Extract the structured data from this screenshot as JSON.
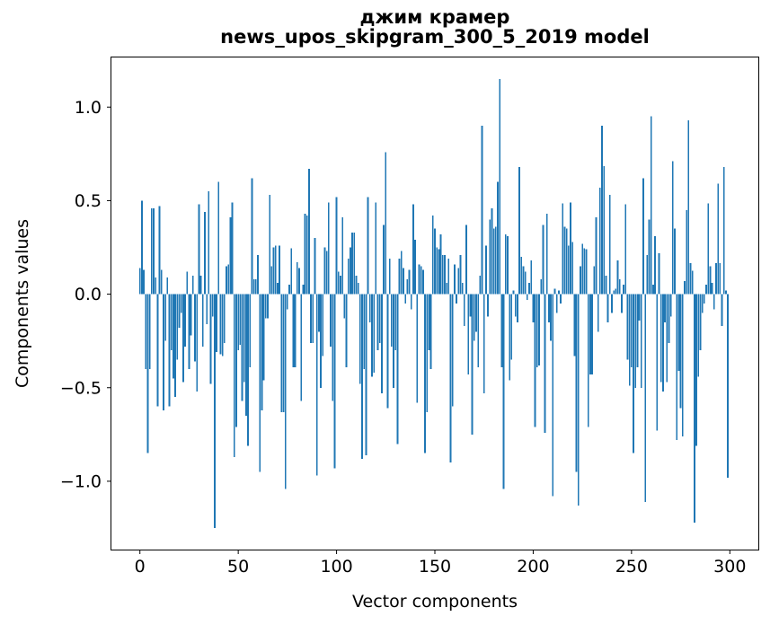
{
  "chart_data": {
    "type": "bar",
    "title": "джим крамер",
    "subtitle": "news_upos_skipgram_300_5_2019 model",
    "xlabel": "Vector components",
    "ylabel": "Components values",
    "bar_color": "#1f77b4",
    "axis_color": "#000000",
    "background_color": "#ffffff",
    "n_components": 300,
    "xlim": [
      -14.95,
      314.95
    ],
    "ylim": [
      -1.37,
      1.27
    ],
    "grid": false,
    "legend": "none",
    "x_ticks": [
      0,
      50,
      100,
      150,
      200,
      250,
      300
    ],
    "x_tick_labels": [
      "0",
      "50",
      "100",
      "150",
      "200",
      "250",
      "300"
    ],
    "y_ticks": [
      1.0,
      0.5,
      0.0,
      -0.5,
      -1.0
    ],
    "y_tick_labels": [
      "1.0",
      "0.5",
      "0.0",
      "−0.5",
      "−1.0"
    ],
    "values": [
      0.14,
      0.5,
      0.13,
      -0.4,
      -0.85,
      -0.4,
      0.46,
      0.46,
      0.09,
      -0.6,
      0.47,
      0.13,
      -0.62,
      -0.25,
      0.09,
      -0.6,
      -0.3,
      -0.45,
      -0.55,
      -0.35,
      -0.18,
      -0.1,
      -0.47,
      -0.28,
      0.12,
      -0.4,
      -0.22,
      0.1,
      -0.36,
      -0.52,
      0.48,
      0.1,
      -0.28,
      0.44,
      -0.16,
      0.55,
      -0.48,
      -0.12,
      -1.25,
      -0.31,
      0.6,
      -0.32,
      -0.33,
      -0.26,
      0.15,
      0.16,
      0.41,
      0.49,
      -0.87,
      -0.71,
      -0.3,
      -0.27,
      -0.57,
      -0.47,
      -0.65,
      -0.81,
      -0.39,
      0.62,
      0.08,
      0.08,
      0.21,
      -0.95,
      -0.62,
      -0.46,
      -0.13,
      -0.13,
      0.53,
      0.15,
      0.25,
      0.26,
      0.06,
      0.26,
      -0.63,
      -0.63,
      -1.04,
      -0.08,
      0.05,
      0.245,
      -0.39,
      -0.39,
      0.17,
      0.14,
      -0.57,
      0.05,
      0.43,
      0.42,
      0.67,
      -0.26,
      -0.26,
      0.3,
      -0.97,
      -0.2,
      -0.5,
      -0.33,
      0.25,
      0.23,
      0.49,
      -0.28,
      -0.57,
      -0.93,
      0.52,
      0.12,
      0.1,
      0.41,
      -0.13,
      -0.39,
      0.19,
      0.25,
      0.33,
      0.33,
      0.1,
      0.06,
      -0.48,
      -0.88,
      -0.4,
      -0.86,
      0.52,
      -0.15,
      -0.44,
      -0.42,
      0.49,
      -0.3,
      -0.26,
      -0.53,
      0.37,
      0.76,
      -0.61,
      0.19,
      -0.28,
      -0.5,
      -0.3,
      -0.8,
      0.19,
      0.23,
      0.14,
      -0.05,
      0.08,
      0.13,
      -0.08,
      0.48,
      0.29,
      -0.58,
      0.16,
      0.15,
      0.13,
      -0.85,
      -0.63,
      -0.3,
      -0.4,
      0.42,
      0.35,
      0.25,
      0.24,
      0.32,
      0.21,
      0.21,
      0.06,
      0.19,
      -0.9,
      -0.6,
      0.16,
      -0.05,
      0.14,
      0.21,
      0.06,
      -0.17,
      0.37,
      -0.43,
      -0.12,
      -0.75,
      -0.25,
      -0.2,
      -0.39,
      0.1,
      0.9,
      -0.53,
      0.26,
      -0.12,
      0.4,
      0.46,
      0.35,
      0.36,
      0.6,
      1.15,
      -0.39,
      -1.04,
      0.32,
      0.31,
      -0.46,
      -0.35,
      0.02,
      -0.12,
      -0.15,
      0.68,
      0.2,
      0.15,
      0.12,
      -0.03,
      0.06,
      0.18,
      -0.15,
      -0.71,
      -0.39,
      -0.38,
      0.08,
      0.37,
      -0.74,
      0.43,
      -0.15,
      -0.25,
      -1.08,
      0.03,
      -0.1,
      0.02,
      -0.05,
      0.485,
      0.36,
      0.35,
      0.26,
      0.49,
      0.28,
      -0.33,
      -0.95,
      -1.13,
      0.15,
      0.27,
      0.245,
      0.24,
      -0.71,
      -0.43,
      -0.43,
      0.15,
      0.41,
      -0.2,
      0.57,
      0.9,
      0.685,
      0.1,
      -0.15,
      0.53,
      -0.1,
      0.02,
      0.03,
      0.18,
      0.08,
      -0.1,
      0.05,
      0.48,
      -0.35,
      -0.49,
      -0.39,
      -0.85,
      -0.5,
      -0.39,
      -0.14,
      -0.5,
      0.62,
      -1.11,
      0.21,
      0.4,
      0.95,
      0.05,
      0.31,
      -0.73,
      0.22,
      -0.47,
      -0.52,
      -0.15,
      -0.47,
      -0.26,
      -0.12,
      0.71,
      0.35,
      -0.78,
      -0.41,
      -0.61,
      -0.76,
      0.07,
      0.45,
      0.93,
      0.165,
      0.125,
      -1.22,
      -0.81,
      -0.44,
      -0.3,
      -0.1,
      -0.05,
      0.05,
      0.485,
      0.15,
      0.06,
      -0.08,
      0.165,
      0.59,
      0.165,
      -0.17,
      0.68,
      0.02,
      -0.98
    ]
  }
}
